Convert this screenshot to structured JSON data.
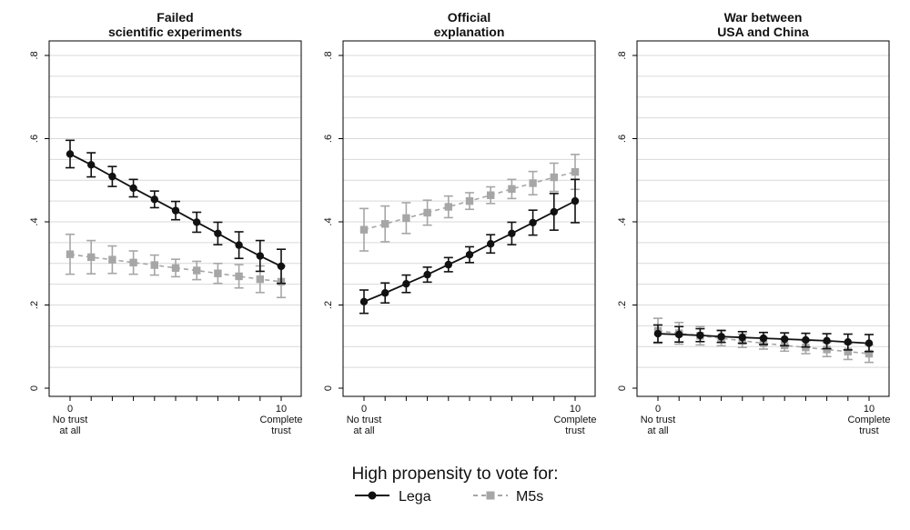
{
  "colors": {
    "lega": "#111111",
    "m5s": "#a6a6a6",
    "grid": "#d9d9d9",
    "frame": "#000000"
  },
  "legend": {
    "title": "High propensity to vote for:",
    "items": [
      {
        "label": "Lega",
        "marker": "circle",
        "line": "solid"
      },
      {
        "label": "M5s",
        "marker": "square",
        "line": "dashed"
      }
    ]
  },
  "chart_data": [
    {
      "type": "line",
      "title": "Failed\nscientific experiments",
      "x": [
        0,
        1,
        2,
        3,
        4,
        5,
        6,
        7,
        8,
        9,
        10
      ],
      "xticks": [
        {
          "value": 0,
          "label": "0\nNo trust\nat all"
        },
        {
          "value": 10,
          "label": "10\nComplete\ntrust"
        }
      ],
      "yticks": [
        {
          "value": 0,
          "label": "0"
        },
        {
          "value": 0.2,
          "label": ".2"
        },
        {
          "value": 0.4,
          "label": ".4"
        },
        {
          "value": 0.6,
          "label": ".6"
        },
        {
          "value": 0.8,
          "label": ".8"
        }
      ],
      "ylim": [
        0,
        0.8
      ],
      "grid": true,
      "series": [
        {
          "name": "Lega",
          "values": [
            0.563,
            0.537,
            0.509,
            0.481,
            0.454,
            0.427,
            0.399,
            0.372,
            0.344,
            0.318,
            0.293
          ],
          "lower": [
            0.53,
            0.508,
            0.485,
            0.46,
            0.434,
            0.405,
            0.375,
            0.345,
            0.312,
            0.281,
            0.252
          ],
          "upper": [
            0.596,
            0.566,
            0.533,
            0.502,
            0.474,
            0.449,
            0.423,
            0.399,
            0.376,
            0.355,
            0.334
          ]
        },
        {
          "name": "M5s",
          "values": [
            0.322,
            0.315,
            0.309,
            0.302,
            0.296,
            0.289,
            0.283,
            0.276,
            0.269,
            0.262,
            0.256
          ],
          "lower": [
            0.274,
            0.275,
            0.276,
            0.274,
            0.272,
            0.268,
            0.261,
            0.252,
            0.241,
            0.23,
            0.218
          ],
          "upper": [
            0.37,
            0.355,
            0.342,
            0.33,
            0.32,
            0.31,
            0.305,
            0.3,
            0.297,
            0.294,
            0.294
          ]
        }
      ]
    },
    {
      "type": "line",
      "title": "Official\nexplanation",
      "x": [
        0,
        1,
        2,
        3,
        4,
        5,
        6,
        7,
        8,
        9,
        10
      ],
      "xticks": [
        {
          "value": 0,
          "label": "0\nNo trust\nat all"
        },
        {
          "value": 10,
          "label": "10\nComplete\ntrust"
        }
      ],
      "yticks": [
        {
          "value": 0,
          "label": "0"
        },
        {
          "value": 0.2,
          "label": ".2"
        },
        {
          "value": 0.4,
          "label": ".4"
        },
        {
          "value": 0.6,
          "label": ".6"
        },
        {
          "value": 0.8,
          "label": ".8"
        }
      ],
      "ylim": [
        0,
        0.8
      ],
      "grid": true,
      "series": [
        {
          "name": "Lega",
          "values": [
            0.208,
            0.229,
            0.251,
            0.273,
            0.297,
            0.321,
            0.347,
            0.372,
            0.398,
            0.424,
            0.45
          ],
          "lower": [
            0.18,
            0.205,
            0.23,
            0.255,
            0.28,
            0.302,
            0.325,
            0.345,
            0.368,
            0.38,
            0.398
          ],
          "upper": [
            0.236,
            0.253,
            0.272,
            0.291,
            0.314,
            0.34,
            0.369,
            0.399,
            0.428,
            0.468,
            0.502
          ]
        },
        {
          "name": "M5s",
          "values": [
            0.381,
            0.395,
            0.409,
            0.422,
            0.436,
            0.45,
            0.464,
            0.479,
            0.493,
            0.507,
            0.52
          ],
          "lower": [
            0.33,
            0.352,
            0.372,
            0.392,
            0.41,
            0.43,
            0.444,
            0.456,
            0.465,
            0.473,
            0.478
          ],
          "upper": [
            0.432,
            0.438,
            0.446,
            0.452,
            0.462,
            0.47,
            0.484,
            0.502,
            0.521,
            0.541,
            0.562
          ]
        }
      ]
    },
    {
      "type": "line",
      "title": "War between\nUSA and China",
      "x": [
        0,
        1,
        2,
        3,
        4,
        5,
        6,
        7,
        8,
        9,
        10
      ],
      "xticks": [
        {
          "value": 0,
          "label": "0\nNo trust\nat all"
        },
        {
          "value": 10,
          "label": "10\nComplete\ntrust"
        }
      ],
      "yticks": [
        {
          "value": 0,
          "label": "0"
        },
        {
          "value": 0.2,
          "label": ".2"
        },
        {
          "value": 0.4,
          "label": ".4"
        },
        {
          "value": 0.6,
          "label": ".6"
        },
        {
          "value": 0.8,
          "label": ".8"
        }
      ],
      "ylim": [
        0,
        0.8
      ],
      "grid": true,
      "series": [
        {
          "name": "Lega",
          "values": [
            0.131,
            0.129,
            0.127,
            0.124,
            0.122,
            0.12,
            0.118,
            0.116,
            0.114,
            0.111,
            0.108
          ],
          "lower": [
            0.11,
            0.111,
            0.112,
            0.11,
            0.108,
            0.105,
            0.102,
            0.099,
            0.095,
            0.092,
            0.088
          ],
          "upper": [
            0.152,
            0.148,
            0.143,
            0.139,
            0.136,
            0.134,
            0.133,
            0.132,
            0.131,
            0.13,
            0.129
          ]
        },
        {
          "name": "M5s",
          "values": [
            0.138,
            0.132,
            0.126,
            0.12,
            0.114,
            0.108,
            0.103,
            0.098,
            0.093,
            0.088,
            0.083
          ],
          "lower": [
            0.108,
            0.106,
            0.104,
            0.102,
            0.098,
            0.094,
            0.089,
            0.083,
            0.076,
            0.069,
            0.062
          ],
          "upper": [
            0.168,
            0.158,
            0.148,
            0.138,
            0.13,
            0.122,
            0.117,
            0.113,
            0.11,
            0.107,
            0.104
          ]
        }
      ]
    }
  ]
}
